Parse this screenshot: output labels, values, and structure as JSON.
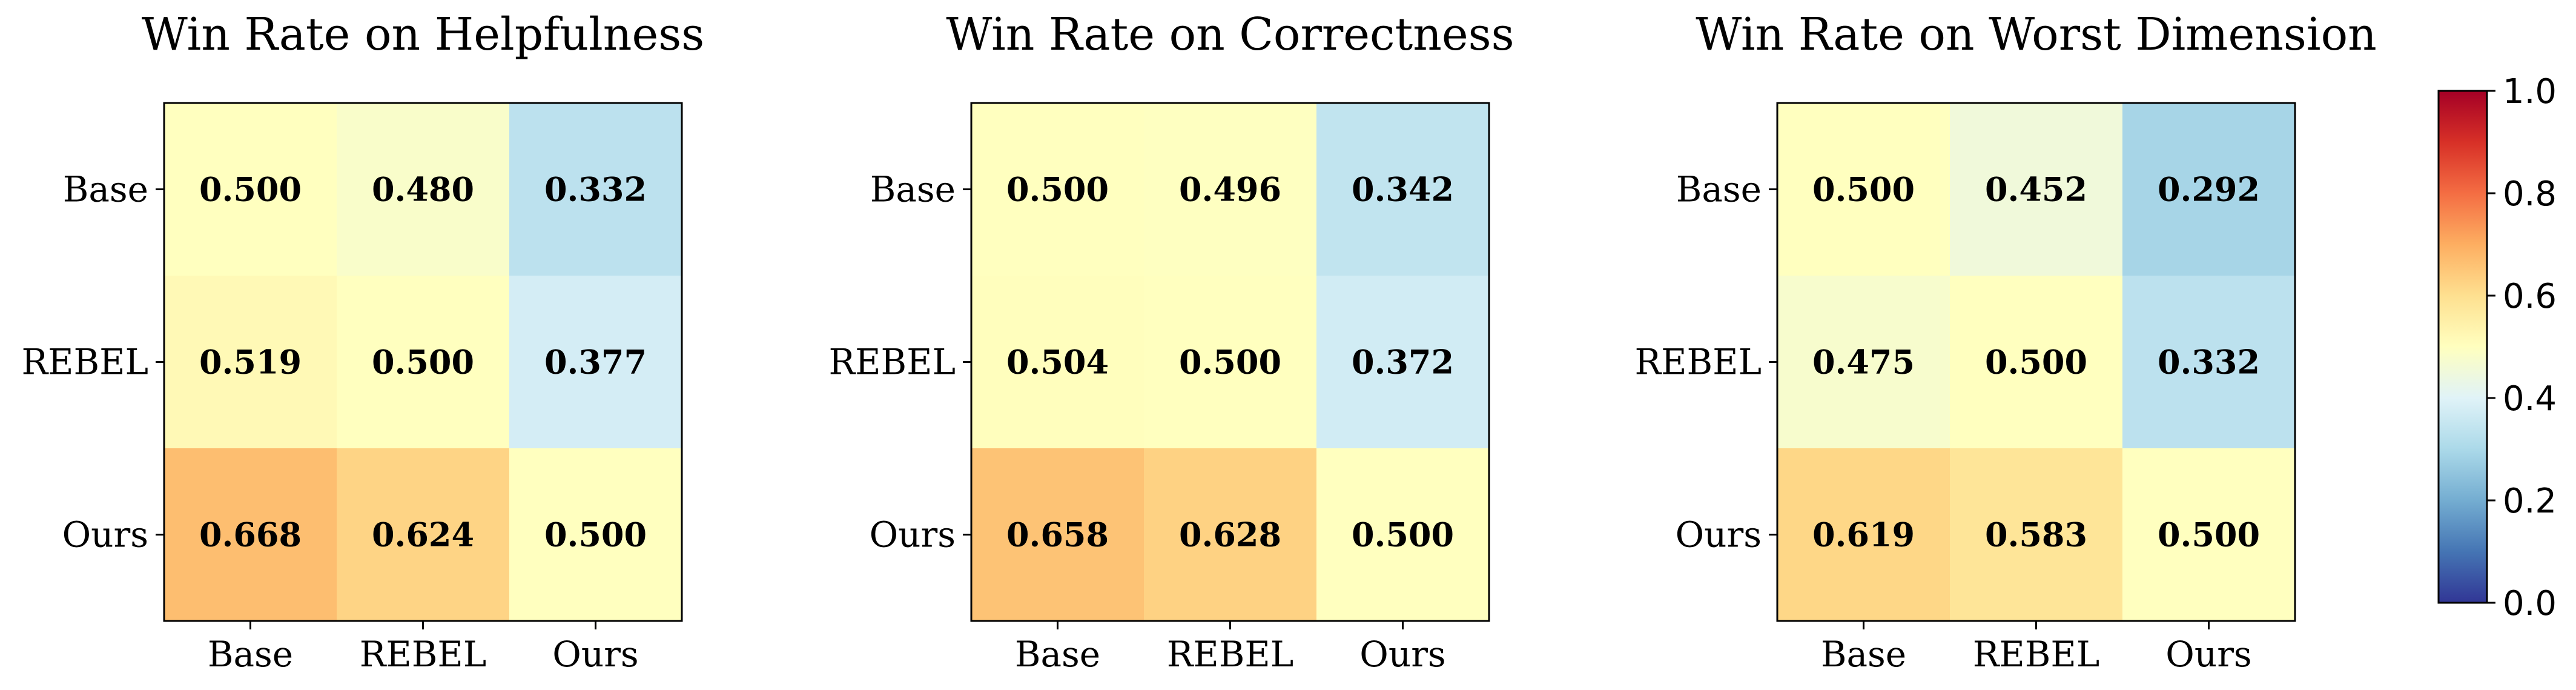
{
  "colormap": {
    "name": "RdYlBu_r",
    "range": [
      0,
      1
    ],
    "ticks": [
      "0.0",
      "0.2",
      "0.4",
      "0.6",
      "0.8",
      "1.0"
    ],
    "stops": [
      "#313695",
      "#4575b4",
      "#74add1",
      "#abd9e9",
      "#e0f3f8",
      "#ffffbf",
      "#fee090",
      "#fdae61",
      "#f46d43",
      "#d73027",
      "#a50026"
    ]
  },
  "chart_data": [
    {
      "type": "heatmap",
      "title": "Win Rate on Helpfulness",
      "rows": [
        "Base",
        "REBEL",
        "Ours"
      ],
      "cols": [
        "Base",
        "REBEL",
        "Ours"
      ],
      "values": [
        [
          0.5,
          0.48,
          0.332
        ],
        [
          0.519,
          0.5,
          0.377
        ],
        [
          0.668,
          0.624,
          0.5
        ]
      ],
      "labels": [
        [
          "0.500",
          "0.480",
          "0.332"
        ],
        [
          "0.519",
          "0.500",
          "0.377"
        ],
        [
          "0.668",
          "0.624",
          "0.500"
        ]
      ]
    },
    {
      "type": "heatmap",
      "title": "Win Rate on Correctness",
      "rows": [
        "Base",
        "REBEL",
        "Ours"
      ],
      "cols": [
        "Base",
        "REBEL",
        "Ours"
      ],
      "values": [
        [
          0.5,
          0.496,
          0.342
        ],
        [
          0.504,
          0.5,
          0.372
        ],
        [
          0.658,
          0.628,
          0.5
        ]
      ],
      "labels": [
        [
          "0.500",
          "0.496",
          "0.342"
        ],
        [
          "0.504",
          "0.500",
          "0.372"
        ],
        [
          "0.658",
          "0.628",
          "0.500"
        ]
      ]
    },
    {
      "type": "heatmap",
      "title": "Win Rate on Worst Dimension",
      "rows": [
        "Base",
        "REBEL",
        "Ours"
      ],
      "cols": [
        "Base",
        "REBEL",
        "Ours"
      ],
      "values": [
        [
          0.5,
          0.452,
          0.292
        ],
        [
          0.475,
          0.5,
          0.332
        ],
        [
          0.619,
          0.583,
          0.5
        ]
      ],
      "labels": [
        [
          "0.500",
          "0.452",
          "0.292"
        ],
        [
          "0.475",
          "0.500",
          "0.332"
        ],
        [
          "0.619",
          "0.583",
          "0.500"
        ]
      ]
    }
  ]
}
